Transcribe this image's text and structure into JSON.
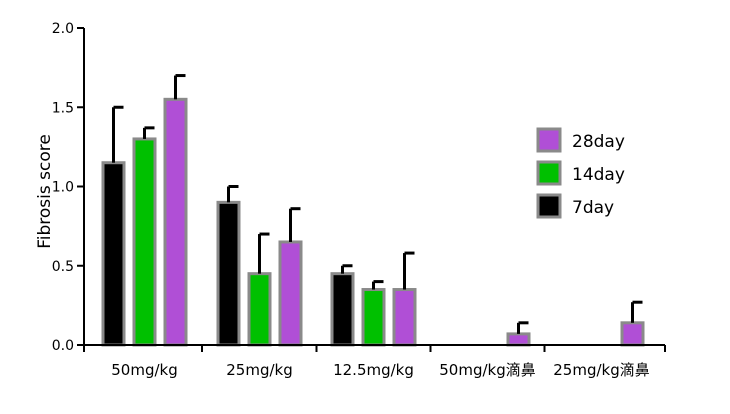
{
  "chart_data": {
    "type": "bar",
    "title": "",
    "xlabel": "",
    "ylabel": "Fibrosis score",
    "ylim": [
      0,
      2.0
    ],
    "yticks": [
      "0.0",
      "0.5",
      "1.0",
      "1.5",
      "2.0"
    ],
    "grid": false,
    "legend_position": "right",
    "categories": [
      "50mg/kg",
      "25mg/kg",
      "12.5mg/kg",
      "50mg/kg滴鼻",
      "25mg/kg滴鼻"
    ],
    "series": [
      {
        "name": "7day",
        "color": "#000000",
        "values": [
          1.15,
          0.9,
          0.45,
          null,
          null
        ],
        "errors": [
          0.35,
          0.1,
          0.05,
          null,
          null
        ]
      },
      {
        "name": "14day",
        "color": "#00c000",
        "values": [
          1.3,
          0.45,
          0.35,
          null,
          null
        ],
        "errors": [
          0.07,
          0.25,
          0.05,
          null,
          null
        ]
      },
      {
        "name": "28day",
        "color": "#b04fd6",
        "values": [
          1.55,
          0.65,
          0.35,
          0.07,
          0.14
        ],
        "errors": [
          0.15,
          0.21,
          0.23,
          0.07,
          0.13
        ]
      }
    ],
    "legend_order": [
      "28day",
      "14day",
      "7day"
    ]
  }
}
